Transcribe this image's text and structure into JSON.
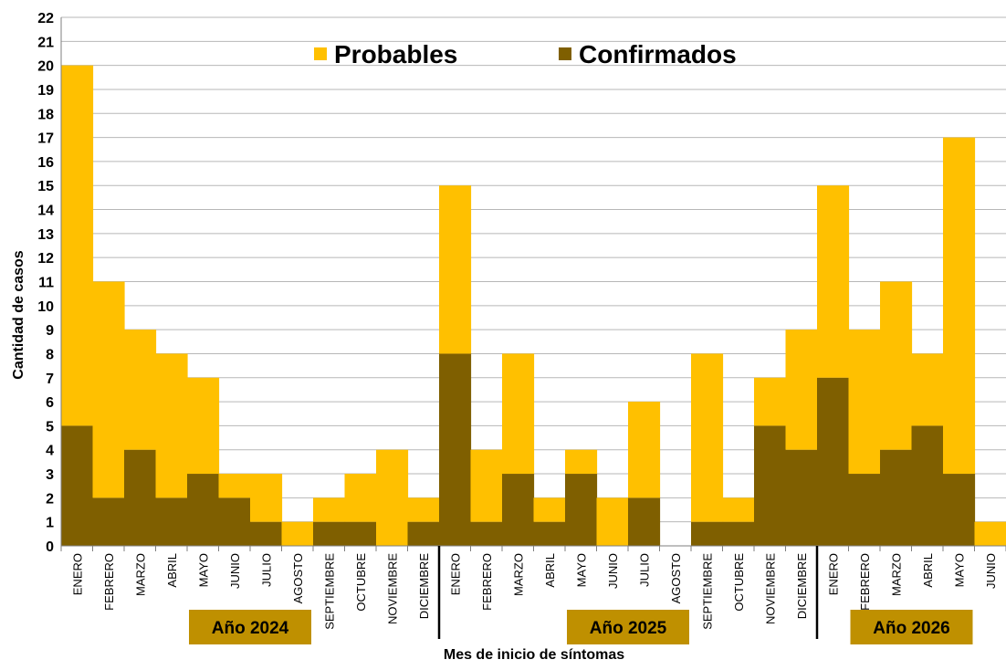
{
  "chart_data": {
    "type": "bar",
    "stacked": true,
    "grid": true,
    "legend_placement": "top",
    "ylabel": "Cantidad de casos",
    "xlabel": "Mes de inicio de síntomas",
    "ylim": [
      0,
      22
    ],
    "yticks": [
      0,
      1,
      2,
      3,
      4,
      5,
      6,
      7,
      8,
      9,
      10,
      11,
      12,
      13,
      14,
      15,
      16,
      17,
      18,
      19,
      20,
      21,
      22
    ],
    "categories": [
      "ENERO",
      "FEBRERO",
      "MARZO",
      "ABRIL",
      "MAYO",
      "JUNIO",
      "JULIO",
      "AGOSTO",
      "SEPTIEMBRE",
      "OCTUBRE",
      "NOVIEMBRE",
      "DICIEMBRE",
      "ENERO",
      "FEBRERO",
      "MARZO",
      "ABRIL",
      "MAYO",
      "JUNIO",
      "JULIO",
      "AGOSTO",
      "SEPTIEMBRE",
      "OCTUBRE",
      "NOVIEMBRE",
      "DICIEMBRE",
      "ENERO",
      "FEBRERO",
      "MARZO",
      "ABRIL",
      "MAYO",
      "JUNIO"
    ],
    "series": [
      {
        "name": "Confirmados",
        "color": "#7f5f00",
        "values": [
          5,
          2,
          4,
          2,
          3,
          2,
          1,
          0,
          1,
          1,
          0,
          1,
          8,
          1,
          3,
          1,
          3,
          0,
          2,
          0,
          1,
          1,
          5,
          4,
          7,
          3,
          4,
          5,
          3,
          0
        ]
      },
      {
        "name": "Probables",
        "color": "#ffc000",
        "values": [
          15,
          9,
          5,
          6,
          4,
          1,
          2,
          1,
          1,
          2,
          4,
          1,
          7,
          3,
          5,
          1,
          1,
          2,
          4,
          0,
          7,
          1,
          2,
          5,
          8,
          6,
          7,
          3,
          14,
          1
        ]
      }
    ],
    "year_groups": [
      {
        "label": "Año 2024",
        "start": 0,
        "end": 11
      },
      {
        "label": "Año 2025",
        "start": 12,
        "end": 23
      },
      {
        "label": "Año 2026",
        "start": 24,
        "end": 29
      }
    ],
    "year_box_color": "#bf9000",
    "grid_color": "#b7b7b7"
  }
}
